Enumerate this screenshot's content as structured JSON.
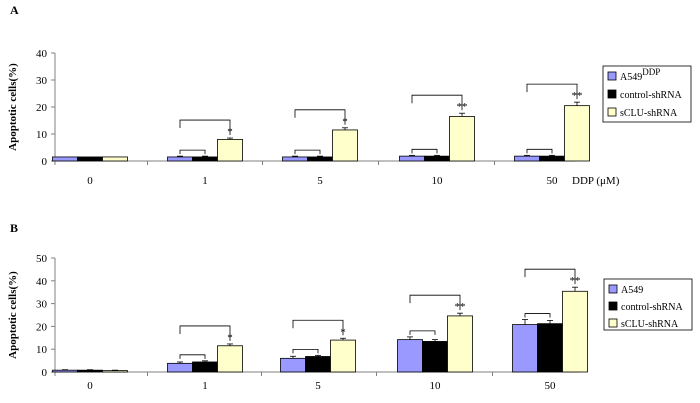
{
  "colors": {
    "A549": "#9999ff",
    "control-shRNA": "#000000",
    "sCLU-shRNA": "#ffffcc",
    "axis": "#808080"
  },
  "chart_data": [
    {
      "panel": "A",
      "type": "bar",
      "ylabel": "Apoptotic cells(%)",
      "xlabel": "DDP (μM)",
      "ylim": [
        0,
        40
      ],
      "yticks": [
        0,
        10,
        20,
        30,
        40
      ],
      "categories": [
        "0",
        "1",
        "5",
        "10",
        "50"
      ],
      "series": [
        {
          "name": "A549",
          "name_sup": "DDP",
          "values": [
            1.5,
            1.5,
            1.5,
            1.8,
            1.8
          ],
          "err": [
            0,
            0.3,
            0.3,
            0.3,
            0.3
          ]
        },
        {
          "name": "control-shRNA",
          "values": [
            1.5,
            1.5,
            1.5,
            1.8,
            1.8
          ],
          "err": [
            0,
            0.3,
            0.3,
            0.3,
            0.3
          ]
        },
        {
          "name": "sCLU-shRNA",
          "values": [
            1.5,
            8,
            11.5,
            16.5,
            20.5
          ],
          "err": [
            0,
            0.5,
            0.8,
            1.2,
            1.3
          ]
        }
      ],
      "annotations": [
        "",
        "*",
        "*",
        "**",
        "**"
      ],
      "legend": "right"
    },
    {
      "panel": "B",
      "type": "bar",
      "ylabel": "Apoptotic cells(%)",
      "xlabel": "",
      "ylim": [
        0,
        50
      ],
      "yticks": [
        0,
        10,
        20,
        30,
        40,
        50
      ],
      "categories": [
        "0",
        "1",
        "5",
        "10",
        "50"
      ],
      "series": [
        {
          "name": "A549",
          "values": [
            0.8,
            3.8,
            6,
            14.2,
            20.8
          ],
          "err": [
            0.2,
            0.6,
            0.9,
            1.2,
            2.2
          ]
        },
        {
          "name": "control-shRNA",
          "values": [
            0.8,
            4.4,
            6.8,
            13.4,
            21.2
          ],
          "err": [
            0.2,
            0.5,
            0.5,
            0.8,
            1.4
          ]
        },
        {
          "name": "sCLU-shRNA",
          "values": [
            0.6,
            11.5,
            14,
            24.6,
            35.4
          ],
          "err": [
            0.2,
            0.8,
            0.8,
            1.2,
            1.8
          ]
        }
      ],
      "annotations": [
        "",
        "*",
        "*",
        "**",
        "**"
      ],
      "legend": "right"
    }
  ]
}
